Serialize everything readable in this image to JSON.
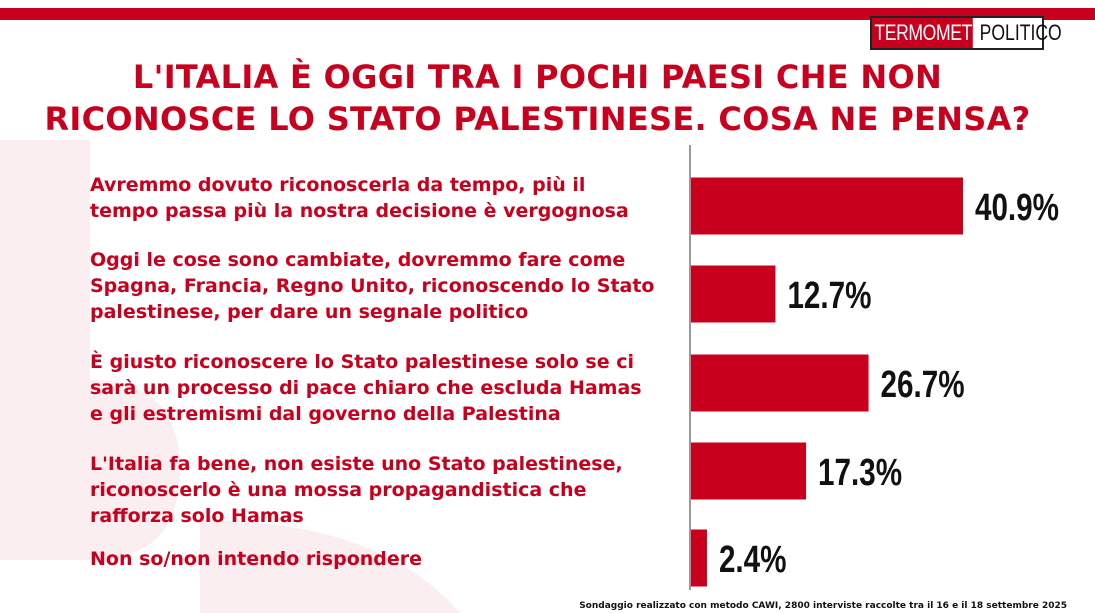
{
  "brand": {
    "part1": "TERMOMETRO",
    "part2": "POLITICO"
  },
  "title_lines": [
    "L'ITALIA È OGGI TRA I POCHI PAESI CHE NON",
    "RICONOSCE LO STATO PALESTINESE. COSA NE PENSA?"
  ],
  "footnote": "Sondaggio realizzato con metodo CAWI, 2800 interviste raccolte tra il 16 e il 18 settembre 2025",
  "colors": {
    "accent": "#c8001e",
    "text": "#111111"
  },
  "chart_data": {
    "type": "bar",
    "orientation": "horizontal",
    "title": "L'ITALIA È OGGI TRA I POCHI PAESI CHE NON RICONOSCE LO STATO PALESTINESE. COSA NE PENSA?",
    "categories": [
      [
        "Avremmo dovuto riconoscerla da tempo, più il",
        "tempo passa più la nostra decisione è vergognosa"
      ],
      [
        "Oggi le cose sono cambiate, dovremmo fare come",
        "Spagna, Francia, Regno Unito, riconoscendo lo Stato",
        "palestinese, per dare un segnale politico"
      ],
      [
        "È giusto riconoscere lo Stato palestinese solo se ci",
        "sarà  un processo di pace chiaro che escluda Hamas",
        "e gli estremismi dal governo della Palestina"
      ],
      [
        "L'Italia fa bene, non esiste uno Stato palestinese,",
        "riconoscerlo è una mossa propagandistica che",
        "rafforza solo Hamas"
      ],
      [
        "Non so/non intendo rispondere"
      ]
    ],
    "values": [
      40.9,
      12.7,
      26.7,
      17.3,
      2.4
    ],
    "value_labels": [
      "40.9%",
      "12.7%",
      "26.7%",
      "17.3%",
      "2.4%"
    ],
    "unit": "%",
    "bar_color": "#c8001e",
    "grid": false,
    "legend": "none"
  }
}
